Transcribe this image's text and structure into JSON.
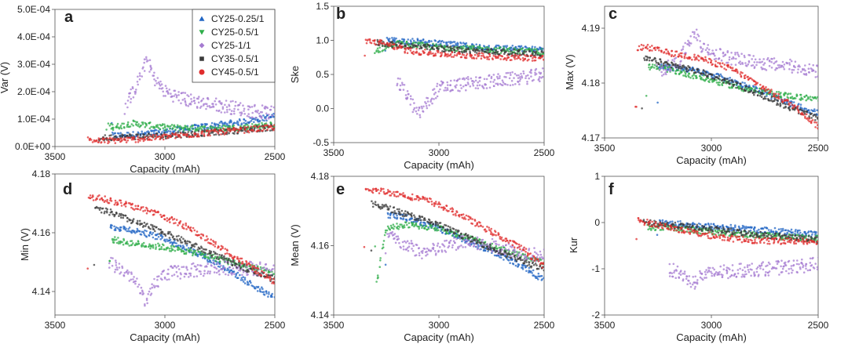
{
  "figure": {
    "xlabel": "Capacity (mAh)"
  },
  "legend": [
    {
      "label": "CY25-0.25/1",
      "color": "#2166c4",
      "marker": "triangle-up"
    },
    {
      "label": "CY25-0.5/1",
      "color": "#2fae4a",
      "marker": "triangle-down"
    },
    {
      "label": "CY25-1/1",
      "color": "#a57bd1",
      "marker": "diamond"
    },
    {
      "label": "CY35-0.5/1",
      "color": "#3a3a3a",
      "marker": "square"
    },
    {
      "label": "CY45-0.5/1",
      "color": "#e02d2d",
      "marker": "circle"
    }
  ],
  "chart_data": [
    {
      "type": "scatter",
      "panel": "a",
      "xlabel": "Capacity (mAh)",
      "ylabel": "Var (V)",
      "xlim": [
        3500,
        2500
      ],
      "xticks": [
        3500,
        3000,
        2500
      ],
      "xtick_labels": [
        "3500",
        "3000",
        "2500"
      ],
      "ylim": [
        0,
        0.0005
      ],
      "yticks": [
        0,
        0.0001,
        0.0002,
        0.0003,
        0.0004,
        0.0005
      ],
      "ytick_labels": [
        "0.0E+00",
        "1.0E-04",
        "2.0E-04",
        "3.0E-04",
        "4.0E-04",
        "5.0E-04"
      ],
      "series": [
        {
          "name": "CY25-0.25/1",
          "x": [
            3240,
            3100,
            2950,
            2800,
            2650,
            2500
          ],
          "y": [
            4e-05,
            4.5e-05,
            6e-05,
            7.5e-05,
            9e-05,
            0.00011
          ]
        },
        {
          "name": "CY25-0.5/1",
          "x": [
            3260,
            3230,
            3150,
            3000,
            2800,
            2650,
            2500
          ],
          "y": [
            8e-05,
            7e-05,
            8.5e-05,
            7e-05,
            6.5e-05,
            7e-05,
            8e-05
          ]
        },
        {
          "name": "CY25-1/1",
          "x": [
            3180,
            3130,
            3080,
            3050,
            3000,
            2900,
            2750,
            2600,
            2500
          ],
          "y": [
            0.00015,
            0.00022,
            0.00032,
            0.00025,
            0.0002,
            0.00017,
            0.00015,
            0.00013,
            0.00012
          ]
        },
        {
          "name": "CY35-0.5/1",
          "x": [
            3300,
            3200,
            3000,
            2800,
            2650,
            2500
          ],
          "y": [
            3e-05,
            3.5e-05,
            4e-05,
            5e-05,
            6e-05,
            7e-05
          ]
        },
        {
          "name": "CY45-0.5/1",
          "x": [
            3350,
            3300,
            3150,
            3000,
            2800,
            2650,
            2500
          ],
          "y": [
            2.5e-05,
            2e-05,
            2.5e-05,
            3.5e-05,
            5e-05,
            6e-05,
            7e-05
          ]
        }
      ]
    },
    {
      "type": "scatter",
      "panel": "b",
      "xlabel": "Capacity (mAh)",
      "ylabel": "Ske",
      "xlim": [
        3500,
        2500
      ],
      "xticks": [
        3500,
        3000,
        2500
      ],
      "xtick_labels": [
        "3500",
        "3000",
        "2500"
      ],
      "ylim": [
        -0.5,
        1.5
      ],
      "yticks": [
        -0.5,
        0,
        0.5,
        1,
        1.5
      ],
      "ytick_labels": [
        "-0.5",
        "0.0",
        "0.5",
        "1.0",
        "1.5"
      ],
      "series": [
        {
          "name": "CY25-0.25/1",
          "x": [
            3250,
            3100,
            2950,
            2800,
            2650,
            2500
          ],
          "y": [
            1.0,
            0.98,
            0.94,
            0.9,
            0.88,
            0.86
          ]
        },
        {
          "name": "CY25-0.5/1",
          "x": [
            3300,
            3200,
            3100,
            3000,
            2800,
            2650,
            2500
          ],
          "y": [
            0.85,
            0.95,
            0.93,
            0.9,
            0.87,
            0.85,
            0.83
          ]
        },
        {
          "name": "CY25-1/1",
          "x": [
            3200,
            3150,
            3100,
            3050,
            3000,
            2900,
            2750,
            2600,
            2500
          ],
          "y": [
            0.4,
            0.2,
            -0.1,
            0.1,
            0.3,
            0.35,
            0.4,
            0.45,
            0.5
          ]
        },
        {
          "name": "CY35-0.5/1",
          "x": [
            3300,
            3200,
            3000,
            2800,
            2650,
            2500
          ],
          "y": [
            0.97,
            0.93,
            0.88,
            0.84,
            0.82,
            0.8
          ]
        },
        {
          "name": "CY45-0.5/1",
          "x": [
            3350,
            3250,
            3150,
            3000,
            2800,
            2650,
            2500
          ],
          "y": [
            1.0,
            0.95,
            0.85,
            0.8,
            0.77,
            0.75,
            0.74
          ]
        }
      ]
    },
    {
      "type": "scatter",
      "panel": "c",
      "xlabel": "Capacity (mAh)",
      "ylabel": "Max (V)",
      "xlim": [
        3500,
        2500
      ],
      "xticks": [
        3500,
        3000,
        2500
      ],
      "xtick_labels": [
        "3500",
        "3000",
        "2500"
      ],
      "ylim": [
        4.17,
        4.194
      ],
      "yticks": [
        4.17,
        4.18,
        4.19
      ],
      "ytick_labels": [
        "4.17",
        "4.18",
        "4.19"
      ],
      "series": [
        {
          "name": "CY25-0.25/1",
          "x": [
            3250,
            3100,
            2950,
            2800,
            2650,
            2500
          ],
          "y": [
            4.183,
            4.1825,
            4.181,
            4.179,
            4.1765,
            4.1745
          ]
        },
        {
          "name": "CY25-0.5/1",
          "x": [
            3300,
            3200,
            3100,
            3000,
            2850,
            2700,
            2500
          ],
          "y": [
            4.183,
            4.1825,
            4.1815,
            4.1805,
            4.179,
            4.178,
            4.177
          ]
        },
        {
          "name": "CY25-1/1",
          "x": [
            3250,
            3150,
            3080,
            3050,
            3000,
            2900,
            2750,
            2600,
            2500
          ],
          "y": [
            4.182,
            4.184,
            4.1895,
            4.187,
            4.1855,
            4.1845,
            4.1835,
            4.183,
            4.182
          ]
        },
        {
          "name": "CY35-0.5/1",
          "x": [
            3320,
            3200,
            3050,
            2900,
            2750,
            2600,
            2500
          ],
          "y": [
            4.1845,
            4.1835,
            4.182,
            4.18,
            4.1775,
            4.175,
            4.1735
          ]
        },
        {
          "name": "CY45-0.5/1",
          "x": [
            3350,
            3300,
            3200,
            3050,
            2900,
            2750,
            2600,
            2500
          ],
          "y": [
            4.1865,
            4.1865,
            4.1855,
            4.1845,
            4.1825,
            4.179,
            4.1755,
            4.172
          ]
        }
      ]
    },
    {
      "type": "scatter",
      "panel": "d",
      "xlabel": "Capacity (mAh)",
      "ylabel": "Min (V)",
      "xlim": [
        3500,
        2500
      ],
      "xticks": [
        3500,
        3000,
        2500
      ],
      "xtick_labels": [
        "3500",
        "3000",
        "2500"
      ],
      "ylim": [
        4.132,
        4.18
      ],
      "yticks": [
        4.14,
        4.16,
        4.18
      ],
      "ytick_labels": [
        "4.14",
        "4.16",
        "4.18"
      ],
      "series": [
        {
          "name": "CY25-0.25/1",
          "x": [
            3250,
            3150,
            3000,
            2850,
            2700,
            2600,
            2500
          ],
          "y": [
            4.162,
            4.161,
            4.158,
            4.153,
            4.147,
            4.142,
            4.138
          ]
        },
        {
          "name": "CY25-0.5/1",
          "x": [
            3250,
            3200,
            3100,
            3000,
            2850,
            2700,
            2500
          ],
          "y": [
            4.158,
            4.157,
            4.156,
            4.155,
            4.153,
            4.15,
            4.146
          ]
        },
        {
          "name": "CY25-1/1",
          "x": [
            3250,
            3150,
            3080,
            3050,
            3000,
            2900,
            2750,
            2600,
            2500
          ],
          "y": [
            4.15,
            4.145,
            4.136,
            4.142,
            4.146,
            4.147,
            4.148,
            4.148,
            4.147
          ]
        },
        {
          "name": "CY35-0.5/1",
          "x": [
            3320,
            3250,
            3150,
            3000,
            2850,
            2700,
            2500
          ],
          "y": [
            4.168,
            4.167,
            4.164,
            4.16,
            4.155,
            4.15,
            4.144
          ]
        },
        {
          "name": "CY45-0.5/1",
          "x": [
            3350,
            3300,
            3200,
            3050,
            2900,
            2750,
            2600,
            2500
          ],
          "y": [
            4.172,
            4.172,
            4.17,
            4.167,
            4.162,
            4.155,
            4.148,
            4.143
          ]
        }
      ]
    },
    {
      "type": "scatter",
      "panel": "e",
      "xlabel": "Capacity (mAh)",
      "ylabel": "Mean (V)",
      "xlim": [
        3500,
        2500
      ],
      "xticks": [
        3500,
        3000,
        2500
      ],
      "xtick_labels": [
        "3500",
        "3000",
        "2500"
      ],
      "ylim": [
        4.14,
        4.18
      ],
      "yticks": [
        4.14,
        4.16,
        4.18
      ],
      "ytick_labels": [
        "4.14",
        "4.16",
        "4.18"
      ],
      "series": [
        {
          "name": "CY25-0.25/1",
          "x": [
            3250,
            3150,
            3000,
            2850,
            2700,
            2600,
            2500
          ],
          "y": [
            4.169,
            4.168,
            4.165,
            4.161,
            4.157,
            4.154,
            4.15
          ]
        },
        {
          "name": "CY25-0.5/1",
          "x": [
            3300,
            3250,
            3150,
            3000,
            2850,
            2700,
            2500
          ],
          "y": [
            4.148,
            4.165,
            4.166,
            4.165,
            4.162,
            4.159,
            4.155
          ]
        },
        {
          "name": "CY25-1/1",
          "x": [
            3250,
            3150,
            3080,
            3000,
            2900,
            2750,
            2600,
            2500
          ],
          "y": [
            4.163,
            4.16,
            4.158,
            4.159,
            4.161,
            4.16,
            4.158,
            4.157
          ]
        },
        {
          "name": "CY35-0.5/1",
          "x": [
            3320,
            3250,
            3150,
            3000,
            2850,
            2700,
            2500
          ],
          "y": [
            4.172,
            4.171,
            4.169,
            4.166,
            4.162,
            4.158,
            4.153
          ]
        },
        {
          "name": "CY45-0.5/1",
          "x": [
            3350,
            3300,
            3200,
            3050,
            2900,
            2750,
            2600,
            2500
          ],
          "y": [
            4.176,
            4.176,
            4.175,
            4.173,
            4.169,
            4.164,
            4.159,
            4.154
          ]
        }
      ]
    },
    {
      "type": "scatter",
      "panel": "f",
      "xlabel": "Capacity (mAh)",
      "ylabel": "Kur",
      "xlim": [
        3500,
        2500
      ],
      "xticks": [
        3500,
        3000,
        2500
      ],
      "xtick_labels": [
        "3500",
        "3000",
        "2500"
      ],
      "ylim": [
        -2,
        1
      ],
      "yticks": [
        -2,
        -1,
        0,
        1
      ],
      "ytick_labels": [
        "-2",
        "-1",
        "0",
        "1"
      ],
      "series": [
        {
          "name": "CY25-0.25/1",
          "x": [
            3250,
            3100,
            2950,
            2800,
            2650,
            2500
          ],
          "y": [
            0.0,
            -0.05,
            -0.1,
            -0.15,
            -0.2,
            -0.25
          ]
        },
        {
          "name": "CY25-0.5/1",
          "x": [
            3300,
            3200,
            3100,
            3000,
            2850,
            2700,
            2500
          ],
          "y": [
            -0.1,
            -0.1,
            -0.15,
            -0.2,
            -0.25,
            -0.3,
            -0.35
          ]
        },
        {
          "name": "CY25-1/1",
          "x": [
            3200,
            3150,
            3080,
            3050,
            3000,
            2900,
            2750,
            2600,
            2500
          ],
          "y": [
            -1.0,
            -1.1,
            -1.3,
            -1.15,
            -1.1,
            -1.05,
            -1.0,
            -0.95,
            -0.9
          ]
        },
        {
          "name": "CY35-0.5/1",
          "x": [
            3320,
            3200,
            3050,
            2900,
            2750,
            2600,
            2500
          ],
          "y": [
            0.0,
            -0.05,
            -0.12,
            -0.2,
            -0.27,
            -0.33,
            -0.38
          ]
        },
        {
          "name": "CY45-0.5/1",
          "x": [
            3350,
            3300,
            3200,
            3050,
            2900,
            2750,
            2600,
            2500
          ],
          "y": [
            0.05,
            0.0,
            -0.1,
            -0.25,
            -0.35,
            -0.4,
            -0.4,
            -0.4
          ]
        }
      ]
    }
  ]
}
